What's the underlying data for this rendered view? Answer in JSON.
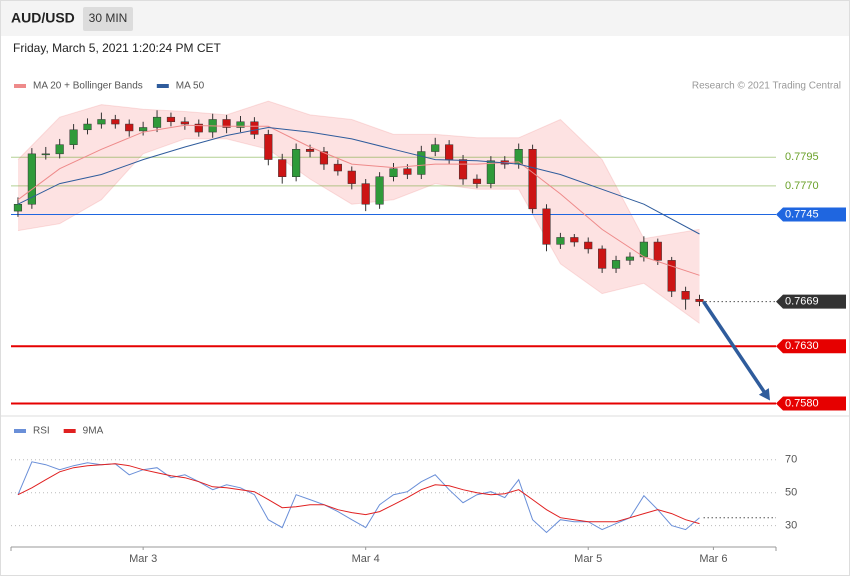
{
  "header": {
    "symbol": "AUD/USD",
    "interval": "30 MIN",
    "timestamp": "Friday, March 5, 2021 1:20:24 PM CET"
  },
  "chart_data": [
    {
      "type": "candlestick",
      "source": "Research © 2021 Trading Central",
      "xlim": [
        -0.5,
        54.5
      ],
      "ylim": [
        0.757,
        0.7845
      ],
      "up_color": "#2f9a3a",
      "down_color": "#cc1414",
      "open": [
        0.7748,
        0.7754,
        0.7798,
        0.7798,
        0.7806,
        0.7819,
        0.7824,
        0.7828,
        0.7824,
        0.7818,
        0.7821,
        0.783,
        0.7826,
        0.7824,
        0.7817,
        0.7828,
        0.7821,
        0.7826,
        0.7815,
        0.7793,
        0.7778,
        0.7802,
        0.78,
        0.7789,
        0.7783,
        0.7772,
        0.7754,
        0.7778,
        0.7785,
        0.778,
        0.78,
        0.7806,
        0.7793,
        0.7776,
        0.7772,
        0.7792,
        0.7789,
        0.7802,
        0.775,
        0.7719,
        0.7725,
        0.7721,
        0.7715,
        0.7698,
        0.7705,
        0.7708,
        0.7721,
        0.7705,
        0.7678,
        0.7671
      ],
      "high": [
        0.776,
        0.7803,
        0.7804,
        0.7811,
        0.7824,
        0.7829,
        0.7834,
        0.7832,
        0.7828,
        0.7826,
        0.7836,
        0.7834,
        0.783,
        0.7828,
        0.7833,
        0.7832,
        0.7831,
        0.783,
        0.7819,
        0.7798,
        0.7807,
        0.7806,
        0.7804,
        0.7793,
        0.7787,
        0.7776,
        0.7782,
        0.779,
        0.7789,
        0.7805,
        0.7812,
        0.781,
        0.7797,
        0.778,
        0.7796,
        0.7796,
        0.7807,
        0.7806,
        0.7754,
        0.7729,
        0.7728,
        0.7725,
        0.7718,
        0.7709,
        0.7712,
        0.7726,
        0.7724,
        0.7708,
        0.7682,
        0.7675
      ],
      "low": [
        0.7743,
        0.775,
        0.7793,
        0.7794,
        0.7802,
        0.7815,
        0.782,
        0.782,
        0.7813,
        0.7814,
        0.7817,
        0.7822,
        0.7819,
        0.7813,
        0.7812,
        0.7816,
        0.7817,
        0.7811,
        0.7788,
        0.7772,
        0.7774,
        0.7795,
        0.7784,
        0.7779,
        0.7767,
        0.7748,
        0.775,
        0.7774,
        0.7776,
        0.7776,
        0.7796,
        0.7789,
        0.7771,
        0.7768,
        0.7768,
        0.7785,
        0.7785,
        0.7746,
        0.7713,
        0.7715,
        0.7717,
        0.7711,
        0.7694,
        0.7694,
        0.7701,
        0.7704,
        0.7701,
        0.7673,
        0.7662,
        0.7665
      ],
      "close": [
        0.7754,
        0.7798,
        0.7798,
        0.7806,
        0.7819,
        0.7824,
        0.7828,
        0.7824,
        0.7818,
        0.7821,
        0.783,
        0.7826,
        0.7824,
        0.7817,
        0.7828,
        0.7821,
        0.7826,
        0.7815,
        0.7793,
        0.7778,
        0.7802,
        0.78,
        0.7789,
        0.7783,
        0.7772,
        0.7754,
        0.7778,
        0.7785,
        0.778,
        0.78,
        0.7806,
        0.7793,
        0.7776,
        0.7772,
        0.7792,
        0.7789,
        0.7802,
        0.775,
        0.7719,
        0.7725,
        0.7721,
        0.7715,
        0.7698,
        0.7705,
        0.7708,
        0.7721,
        0.7705,
        0.7678,
        0.7671,
        0.7669
      ],
      "overlay_x": [
        0,
        3,
        6,
        9,
        12,
        15,
        18,
        21,
        24,
        27,
        30,
        33,
        36,
        39,
        42,
        45,
        49
      ],
      "series": [
        {
          "name": "MA 20 + Bollinger Bands",
          "color": "#ee8a8a",
          "band_color": "#fde2e2",
          "values": [
            0.7758,
            0.7785,
            0.7802,
            0.7817,
            0.7823,
            0.7822,
            0.7822,
            0.7804,
            0.7789,
            0.7786,
            0.7789,
            0.7789,
            0.7791,
            0.7763,
            0.7732,
            0.7708,
            0.7692
          ],
          "upper": [
            0.7793,
            0.783,
            0.7841,
            0.7837,
            0.7835,
            0.7832,
            0.7844,
            0.7832,
            0.7828,
            0.7815,
            0.7815,
            0.7812,
            0.7812,
            0.7828,
            0.7793,
            0.7724,
            0.7732
          ],
          "lower": [
            0.7731,
            0.7737,
            0.7758,
            0.7798,
            0.7811,
            0.7811,
            0.7802,
            0.7776,
            0.7754,
            0.7758,
            0.7772,
            0.7767,
            0.7767,
            0.7702,
            0.7676,
            0.7685,
            0.765
          ]
        },
        {
          "name": "MA 50",
          "color": "#2f5c9c",
          "values": [
            0.7754,
            0.7772,
            0.778,
            0.7793,
            0.7804,
            0.7814,
            0.7821,
            0.7817,
            0.7811,
            0.7802,
            0.7793,
            0.7792,
            0.7789,
            0.778,
            0.7767,
            0.7754,
            0.7728
          ]
        }
      ],
      "levels": [
        {
          "value": 0.7795,
          "label": "0.7795",
          "color": "#6aa12a",
          "style": "text",
          "line": "thin"
        },
        {
          "value": 0.777,
          "label": "0.7770",
          "color": "#6aa12a",
          "style": "text",
          "line": "thin"
        },
        {
          "value": 0.7745,
          "label": "0.7745",
          "color": "#1f66e0",
          "style": "box",
          "line": "thin"
        },
        {
          "value": 0.7669,
          "label": "0.7669",
          "color": "#333333",
          "style": "box",
          "line": "dotted"
        },
        {
          "value": 0.763,
          "label": "0.7630",
          "color": "#e60000",
          "style": "box",
          "line": "thick"
        },
        {
          "value": 0.758,
          "label": "0.7580",
          "color": "#e60000",
          "style": "box",
          "line": "thick"
        }
      ],
      "projection_color": "#2f5c9c"
    },
    {
      "type": "line",
      "xlim": [
        -0.5,
        54.5
      ],
      "ylim": [
        17,
        79
      ],
      "yticks": [
        30,
        50,
        70
      ],
      "grid": true,
      "xticks": [
        {
          "value": 9,
          "label": "Mar 3"
        },
        {
          "value": 25,
          "label": "Mar 4"
        },
        {
          "value": 41,
          "label": "Mar 5"
        },
        {
          "value": 50,
          "label": "Mar 6"
        }
      ],
      "series": [
        {
          "name": "RSI",
          "color": "#6a8fd8",
          "values": [
            48.8,
            68.8,
            67,
            64,
            66.4,
            68.2,
            67,
            67.6,
            60.9,
            64,
            65.2,
            59.1,
            60.9,
            56.7,
            51.8,
            54.8,
            53,
            48.8,
            33.6,
            28.8,
            48.8,
            45.8,
            42.7,
            38.5,
            33.6,
            28.8,
            42.7,
            48.8,
            50.6,
            56.7,
            60.9,
            51.8,
            43.9,
            48.8,
            50.6,
            47,
            57.9,
            33.6,
            25.8,
            33.6,
            32.4,
            32.4,
            27.6,
            31.2,
            34.8,
            48.2,
            39.7,
            30,
            27.6,
            34.8
          ]
        },
        {
          "name": "9MA",
          "color": "#e02020",
          "values": [
            48.8,
            53,
            57.9,
            62.7,
            65.2,
            66.4,
            67,
            67.6,
            66.4,
            64,
            62.1,
            60.3,
            59.1,
            56.7,
            53.6,
            53,
            51.8,
            50.6,
            45.8,
            40.9,
            41.5,
            42.7,
            42.7,
            39.7,
            37.9,
            36.7,
            38.5,
            42.7,
            47,
            51.8,
            54.8,
            54.2,
            51.8,
            50,
            48.8,
            49.4,
            51.8,
            45.8,
            39.7,
            34.8,
            33.6,
            32.4,
            32.4,
            32.4,
            34.8,
            37.3,
            39.7,
            37.3,
            33.6,
            31.2
          ]
        }
      ]
    }
  ]
}
